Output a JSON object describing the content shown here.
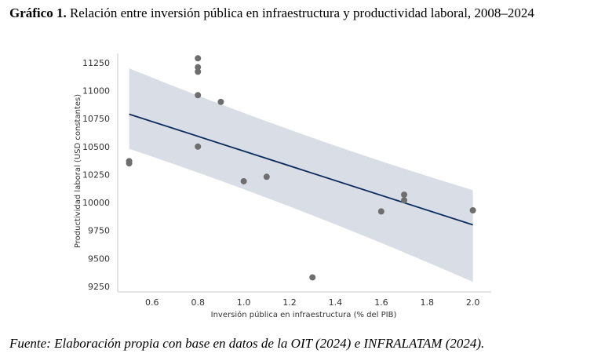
{
  "caption": {
    "prefix": "Gráfico 1.",
    "text": " Relación entre inversión pública en infraestructura y productividad laboral, 2008–2024"
  },
  "source": "Fuente: Elaboración propia con base en datos de la OIT (2024) e INFRALATAM (2024).",
  "chart_data": {
    "type": "scatter",
    "title": "",
    "xlabel": "Inversión pública en infraestructura (% del PIB)",
    "ylabel": "Productividad laboral (USD constantes)",
    "xlim": [
      0.45,
      2.08
    ],
    "ylim": [
      9200,
      11320
    ],
    "xticks": [
      0.6,
      0.8,
      1.0,
      1.2,
      1.4,
      1.6,
      1.8,
      2.0
    ],
    "xtick_labels": [
      "0.6",
      "0.8",
      "1.0",
      "1.2",
      "1.4",
      "1.6",
      "1.8",
      "2.0"
    ],
    "yticks": [
      9250,
      9500,
      9750,
      10000,
      10250,
      10500,
      10750,
      11000,
      11250
    ],
    "ytick_labels": [
      "9250",
      "9500",
      "9750",
      "10000",
      "10250",
      "10500",
      "10750",
      "11000",
      "11250"
    ],
    "grid": false,
    "points": [
      {
        "x": 0.5,
        "y": 10370
      },
      {
        "x": 0.5,
        "y": 10350
      },
      {
        "x": 0.8,
        "y": 11290
      },
      {
        "x": 0.8,
        "y": 11210
      },
      {
        "x": 0.8,
        "y": 11170
      },
      {
        "x": 0.8,
        "y": 10960
      },
      {
        "x": 0.8,
        "y": 10500
      },
      {
        "x": 0.9,
        "y": 10900
      },
      {
        "x": 1.0,
        "y": 10190
      },
      {
        "x": 1.1,
        "y": 10230
      },
      {
        "x": 1.3,
        "y": 9330
      },
      {
        "x": 1.6,
        "y": 9920
      },
      {
        "x": 1.7,
        "y": 10070
      },
      {
        "x": 1.7,
        "y": 10020
      },
      {
        "x": 2.0,
        "y": 9930
      }
    ],
    "regression": {
      "x0": 0.5,
      "y0": 10790,
      "x1": 2.0,
      "y1": 9800
    },
    "confidence_band": {
      "x": [
        0.5,
        2.0
      ],
      "upper": [
        11200,
        10110
      ],
      "lower": [
        10480,
        9290
      ]
    },
    "colors": {
      "points": "#6e6e6e",
      "line": "#0d2c5e",
      "band": "#d8dde6",
      "axis": "#c8c8c8"
    }
  }
}
